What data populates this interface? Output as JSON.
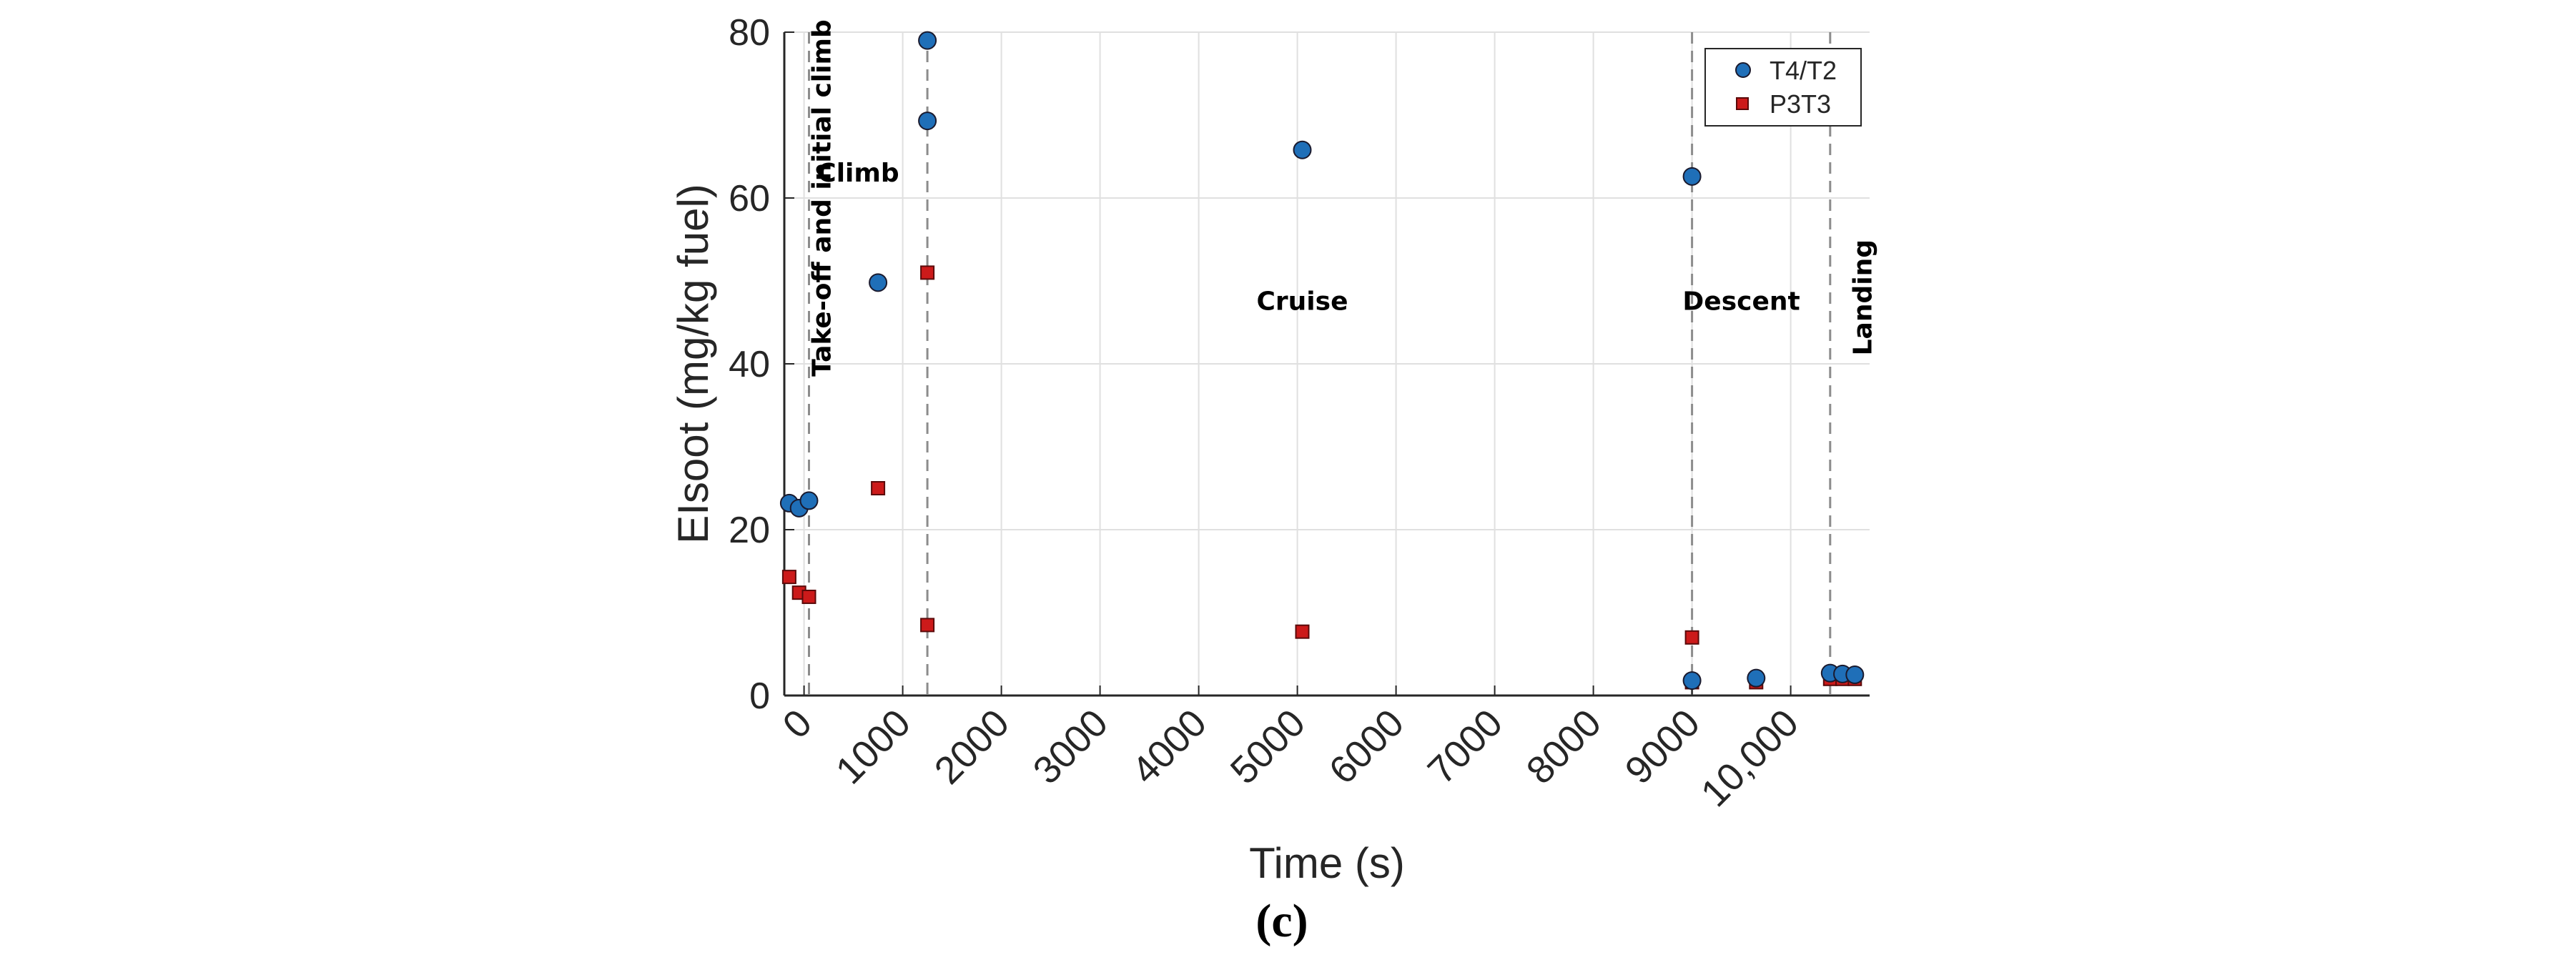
{
  "chart_data": {
    "type": "scatter",
    "title": "",
    "xlabel": "Time (s)",
    "ylabel": "EIsoot (mg/kg fuel)",
    "xlim": [
      -200,
      10800
    ],
    "ylim": [
      0,
      80
    ],
    "grid": true,
    "x_ticks": [
      0,
      1000,
      2000,
      3000,
      4000,
      5000,
      6000,
      7000,
      8000,
      9000,
      10000
    ],
    "x_tick_labels": [
      "0",
      "1000",
      "2000",
      "3000",
      "4000",
      "5000",
      "6000",
      "7000",
      "8000",
      "9000",
      "10,000"
    ],
    "y_ticks": [
      0,
      20,
      40,
      60,
      80
    ],
    "y_tick_labels": [
      "0",
      "20",
      "40",
      "60",
      "80"
    ],
    "legend_position": "top-right",
    "series": [
      {
        "name": "T4/T2",
        "marker": "circle",
        "color": "#1f6fb8",
        "x": [
          -150,
          -50,
          50,
          750,
          1250,
          1250,
          5050,
          9000,
          9000,
          9650,
          10400,
          10525,
          10650
        ],
        "y": [
          23.2,
          22.6,
          23.5,
          49.8,
          69.3,
          79.0,
          65.8,
          62.6,
          1.8,
          2.1,
          2.7,
          2.6,
          2.5
        ]
      },
      {
        "name": "P3T3",
        "marker": "square",
        "color": "#cc1a1a",
        "x": [
          -150,
          -50,
          50,
          750,
          1250,
          1250,
          5050,
          9000,
          9000,
          9650,
          10400,
          10525,
          10650
        ],
        "y": [
          14.3,
          12.4,
          11.9,
          25.0,
          51.0,
          8.5,
          7.7,
          7.0,
          1.6,
          1.6,
          2.0,
          2.0,
          2.0
        ]
      }
    ],
    "phase_boundaries": [
      50,
      1250,
      9000,
      10400
    ],
    "phase_labels": [
      {
        "text": "Take-off and initial climb",
        "x": 50,
        "y": 60,
        "vertical": true
      },
      {
        "text": "Climb",
        "x": 550,
        "y": 62,
        "vertical": false
      },
      {
        "text": "Cruise",
        "x": 5050,
        "y": 46.5,
        "vertical": false
      },
      {
        "text": "Descent",
        "x": 9500,
        "y": 46.5,
        "vertical": false
      },
      {
        "text": "Landing",
        "x": 10600,
        "y": 48,
        "vertical": true
      }
    ]
  },
  "caption": "(c)"
}
